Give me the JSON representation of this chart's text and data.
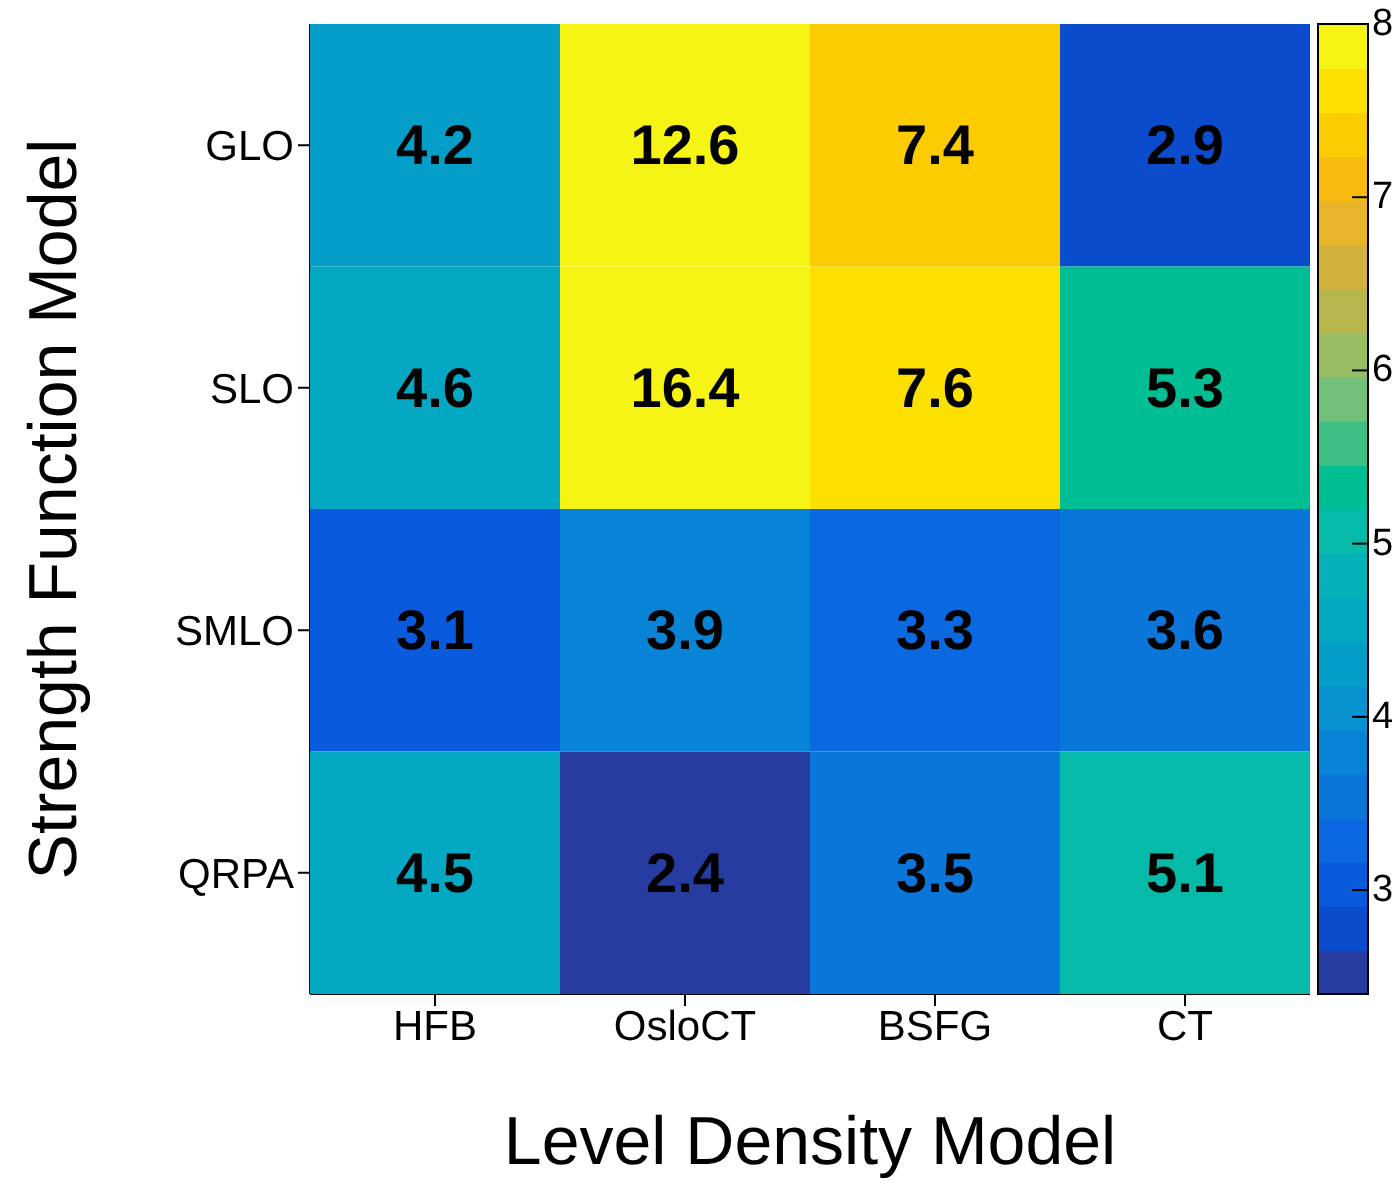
{
  "chart_data": {
    "type": "heatmap",
    "xlabel": "Level Density Model",
    "ylabel": "Strength Function Model",
    "categories": [
      "HFB",
      "OsloCT",
      "BSFG",
      "CT"
    ],
    "y_categories": [
      "GLO",
      "SLO",
      "SMLO",
      "QRPA"
    ],
    "cells": [
      [
        4.2,
        12.6,
        7.4,
        2.9
      ],
      [
        4.6,
        16.4,
        7.6,
        5.3
      ],
      [
        3.1,
        3.9,
        3.3,
        3.6
      ],
      [
        4.5,
        2.4,
        3.5,
        5.1
      ]
    ],
    "data_labels": true,
    "clim": [
      2.4,
      8
    ],
    "cticks": [
      3,
      4,
      5,
      6,
      7,
      8
    ]
  }
}
